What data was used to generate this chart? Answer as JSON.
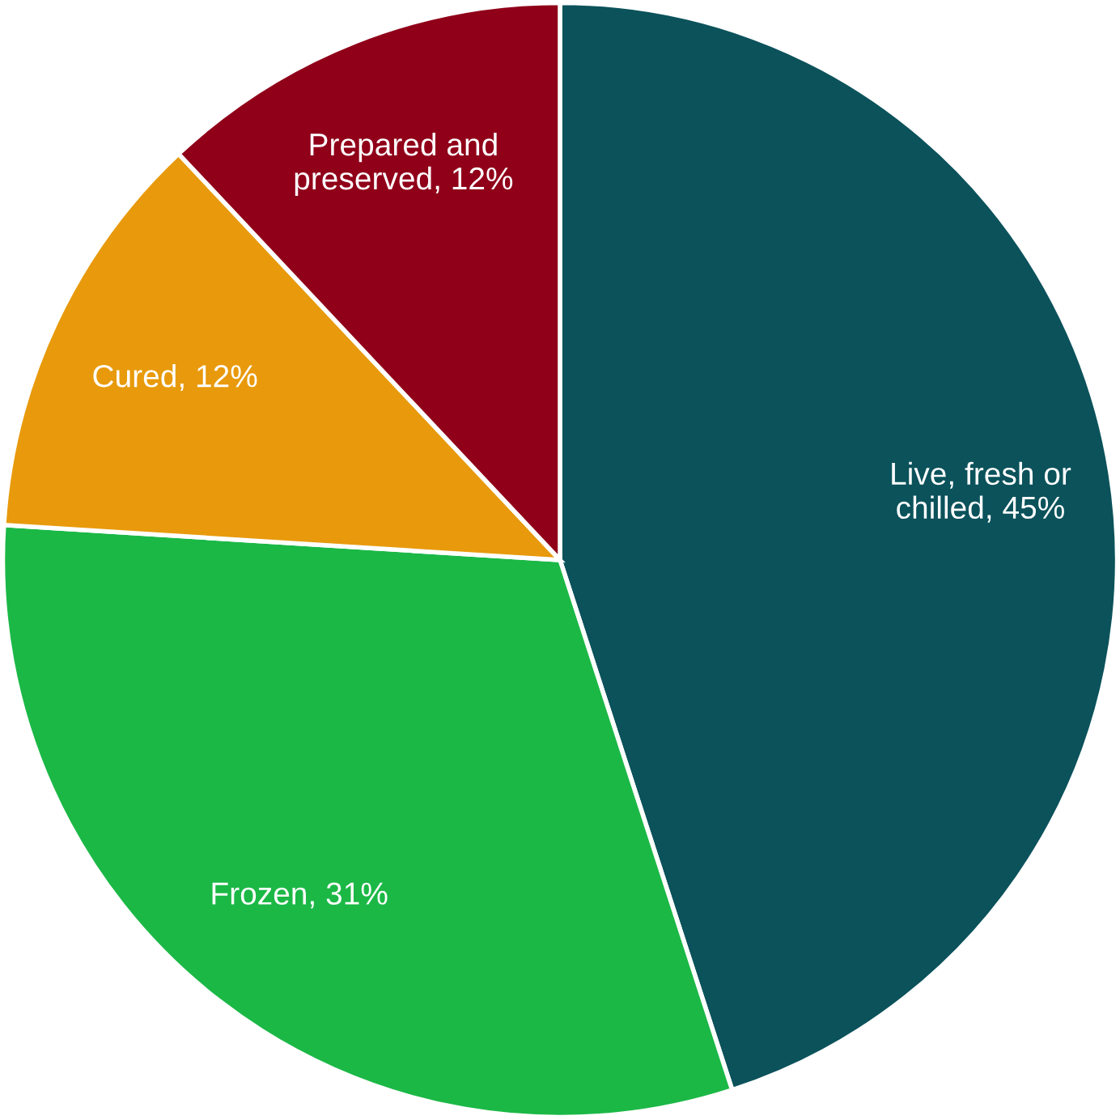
{
  "chart_data": {
    "type": "pie",
    "categories": [
      "Live, fresh or chilled",
      "Frozen",
      "Cured",
      "Prepared and preserved"
    ],
    "values": [
      45,
      31,
      12,
      12
    ],
    "value_labels": [
      "45%",
      "31%",
      "12%",
      "12%"
    ],
    "colors": [
      "#0b525b",
      "#1bb846",
      "#e89a0c",
      "#900019"
    ]
  }
}
